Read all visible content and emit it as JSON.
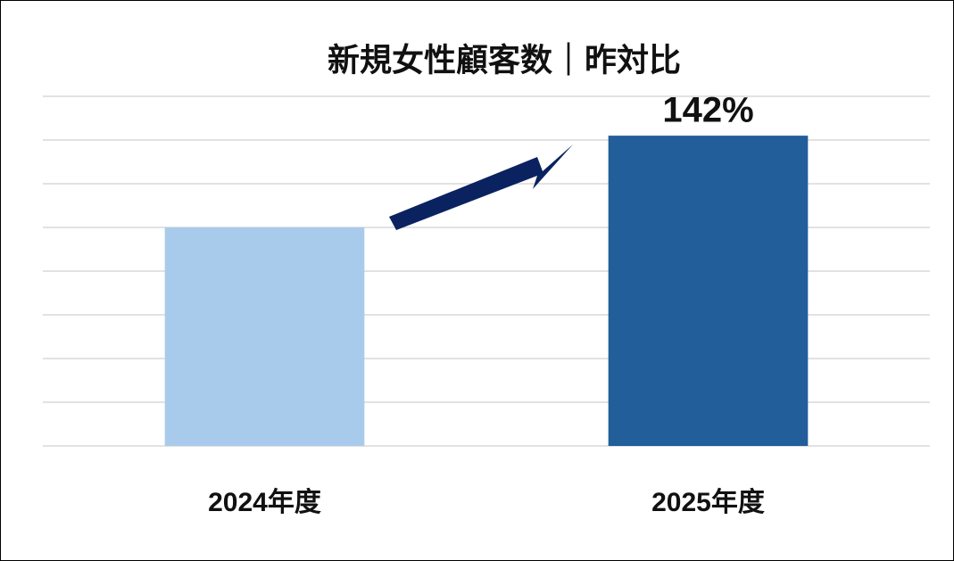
{
  "chart_data": {
    "type": "bar",
    "title": "新規女性顧客数｜昨対比",
    "categories": [
      "2024年度",
      "2025年度"
    ],
    "values": [
      100,
      142
    ],
    "value_labels": [
      null,
      "142%"
    ],
    "colors": [
      "#a9cbeb",
      "#225e9a"
    ],
    "ylim": [
      0,
      160
    ],
    "yticks": [
      0,
      20,
      40,
      60,
      80,
      100,
      120,
      140,
      160
    ],
    "grid": true,
    "show_tick_labels": false
  }
}
